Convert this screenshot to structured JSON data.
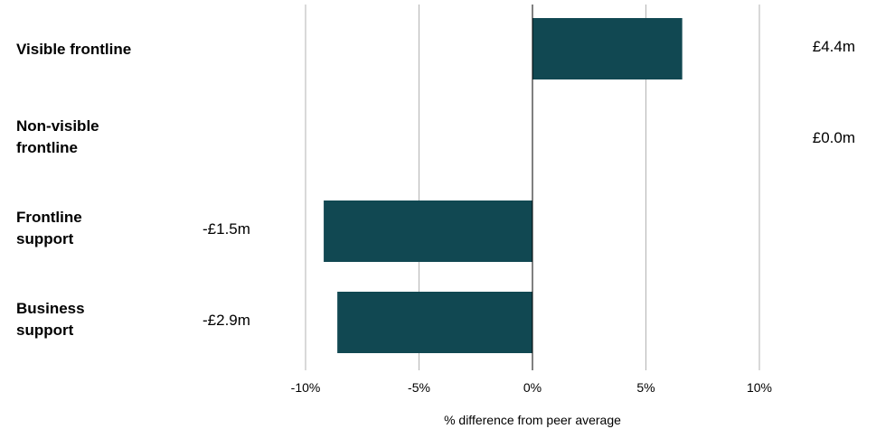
{
  "chart_data": {
    "type": "bar",
    "orientation": "horizontal",
    "categories": [
      "Visible frontline",
      "Non-visible frontline",
      "Frontline support",
      "Business support"
    ],
    "values": [
      6.6,
      0.0,
      -9.2,
      -8.6
    ],
    "value_labels": [
      "£4.4m",
      "£0.0m",
      "-£1.5m",
      "-£2.9m"
    ],
    "xlabel": "% difference from peer average",
    "xlim": [
      -10,
      10
    ],
    "xticks": [
      -10,
      -5,
      0,
      5,
      10
    ],
    "xtick_labels": [
      "-10%",
      "-5%",
      "0%",
      "5%",
      "10%"
    ],
    "grid": true,
    "colors": {
      "bar": "#114852",
      "grid": "#b3b3b3",
      "zero_line": "#000000"
    }
  }
}
